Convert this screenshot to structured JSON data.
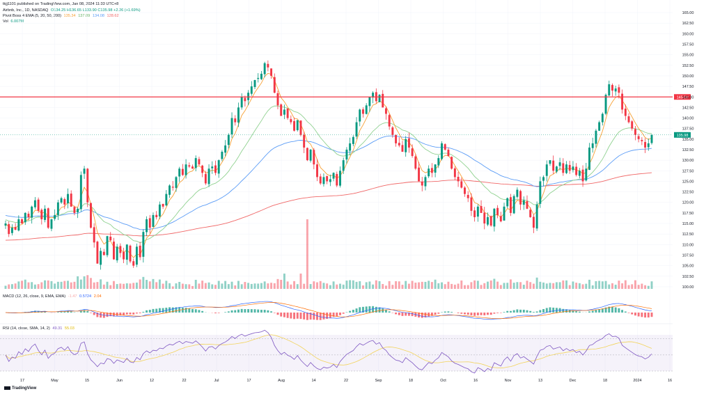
{
  "header": {
    "publisher": "tkjj1101 published on TradingView.com, Jan 08, 2024 11:33 UTC+8",
    "symbol": "Airbnb, Inc., 1D, NASDAQ",
    "ohlc": "O134.25 H136.65 L133.90 C135.98 +2.26 (+1.69%)",
    "ema_label": "Pivot Boss 4 EMA (5, 20, 50, 200)",
    "ema_values": [
      "135.34",
      "137.09",
      "134.08",
      "128.62"
    ],
    "vol_label": "Vol",
    "vol_value": "6.007M",
    "macd_label": "MACD (12, 26, close, 9, EMA, EMA)",
    "macd_values": [
      "-1.47",
      "0.5724",
      "2.04"
    ],
    "rsi_label": "RSI (14, close, SMA, 14, 2)",
    "rsi_values": [
      "49.31",
      "55.03"
    ]
  },
  "colors": {
    "up": "#089981",
    "down": "#f23645",
    "ema5": "#f7a034",
    "ema20": "#8fd18f",
    "ema50": "#5b9cf6",
    "ema200": "#f06666",
    "resistance": "#f23645",
    "rsi": "#7e57c2",
    "rsi_ma": "#f2d35a",
    "macd": "#2962ff",
    "signal": "#ff6d00"
  },
  "chart_data": {
    "type": "candlestick",
    "title": "Airbnb, Inc., 1D, NASDAQ",
    "y_ticks": [
      "165.00",
      "162.50",
      "160.00",
      "157.50",
      "155.00",
      "152.50",
      "150.00",
      "147.50",
      "145.00",
      "142.50",
      "140.00",
      "137.50",
      "135.00",
      "132.50",
      "130.00",
      "127.50",
      "125.00",
      "122.50",
      "120.00",
      "117.50",
      "115.00",
      "112.50",
      "110.00",
      "107.50",
      "105.00",
      "102.50",
      "100.00"
    ],
    "ylim": [
      99,
      166
    ],
    "x_ticks": [
      "17",
      "May",
      "15",
      "Jun",
      "12",
      "22",
      "Jul",
      "17",
      "Aug",
      "14",
      "22",
      "Sep",
      "18",
      "Oct",
      "16",
      "Nov",
      "13",
      "Dec",
      "18",
      "2024",
      "16"
    ],
    "resistance_level": 145.0,
    "resistance_label": "145.00",
    "last_price_label": "135.98",
    "closes": [
      115.0,
      112.5,
      114.0,
      113.5,
      116.0,
      115.0,
      117.5,
      116.5,
      119.0,
      120.5,
      118.0,
      116.0,
      118.5,
      114.0,
      116.0,
      117.0,
      120.0,
      121.0,
      119.5,
      122.0,
      119.0,
      117.5,
      118.5,
      126.5,
      128.0,
      120.0,
      114.0,
      110.5,
      105.5,
      108.5,
      107.5,
      112.0,
      111.0,
      106.5,
      109.5,
      108.0,
      106.5,
      110.0,
      106.0,
      105.0,
      109.5,
      107.0,
      113.0,
      116.0,
      114.0,
      117.0,
      116.5,
      119.5,
      119.0,
      122.0,
      124.0,
      123.5,
      126.0,
      128.0,
      126.5,
      129.0,
      128.5,
      128.0,
      130.5,
      129.0,
      127.0,
      124.5,
      128.0,
      128.5,
      127.0,
      130.0,
      132.0,
      133.5,
      136.0,
      140.0,
      139.0,
      142.5,
      145.0,
      144.0,
      146.0,
      147.5,
      149.0,
      149.5,
      150.5,
      153.0,
      152.0,
      150.0,
      146.0,
      143.0,
      140.5,
      142.0,
      140.0,
      139.0,
      137.0,
      139.5,
      136.0,
      133.0,
      130.0,
      132.5,
      129.0,
      126.0,
      124.5,
      126.0,
      125.0,
      125.5,
      127.0,
      124.0,
      127.5,
      130.0,
      132.5,
      134.0,
      135.5,
      139.0,
      142.0,
      141.0,
      143.0,
      145.0,
      146.0,
      144.0,
      145.5,
      142.5,
      141.0,
      138.0,
      136.0,
      134.0,
      133.5,
      132.0,
      135.0,
      133.0,
      131.0,
      128.0,
      125.0,
      124.0,
      126.0,
      128.0,
      127.0,
      129.0,
      130.5,
      134.0,
      132.5,
      131.0,
      128.0,
      126.0,
      125.0,
      123.5,
      122.0,
      121.0,
      118.0,
      116.5,
      119.0,
      117.5,
      115.0,
      116.5,
      114.5,
      118.5,
      117.0,
      115.5,
      119.0,
      121.0,
      117.5,
      121.5,
      123.0,
      119.5,
      120.5,
      118.5,
      116.5,
      114.0,
      119.5,
      125.0,
      126.0,
      129.0,
      130.0,
      127.5,
      128.5,
      129.5,
      127.0,
      129.0,
      127.5,
      128.5,
      126.5,
      127.5,
      125.0,
      128.0,
      133.0,
      134.0,
      137.0,
      139.0,
      141.0,
      145.5,
      148.0,
      146.5,
      147.0,
      146.0,
      142.0,
      140.5,
      139.0,
      137.5,
      136.0,
      135.0,
      134.5,
      133.0,
      134.0,
      136.0
    ]
  }
}
